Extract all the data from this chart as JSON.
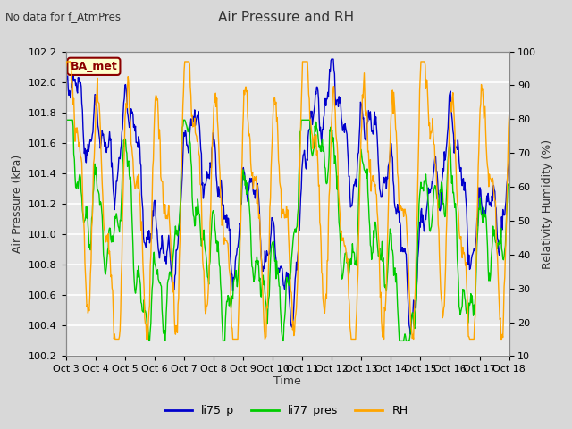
{
  "title": "Air Pressure and RH",
  "subtitle": "No data for f_AtmPres",
  "xlabel": "Time",
  "ylabel_left": "Air Pressure (kPa)",
  "ylabel_right": "Relativity Humidity (%)",
  "xlim_days": [
    0,
    15
  ],
  "ylim_left": [
    100.2,
    102.2
  ],
  "ylim_right": [
    10,
    100
  ],
  "xtick_labels": [
    "Oct 3",
    "Oct 4",
    "Oct 5",
    "Oct 6",
    "Oct 7",
    "Oct 8",
    "Oct 9",
    "Oct 10",
    "Oct 11",
    "Oct 12",
    "Oct 13",
    "Oct 14",
    "Oct 15",
    "Oct 16",
    "Oct 17",
    "Oct 18"
  ],
  "yticks_left": [
    100.2,
    100.4,
    100.6,
    100.8,
    101.0,
    101.2,
    101.4,
    101.6,
    101.8,
    102.0,
    102.2
  ],
  "yticks_right": [
    10,
    20,
    30,
    40,
    50,
    60,
    70,
    80,
    90,
    100
  ],
  "bg_color": "#d8d8d8",
  "plot_bg_color": "#e8e8e8",
  "grid_color": "#ffffff",
  "line_blue": "#0000cc",
  "line_green": "#00cc00",
  "line_orange": "#ffa500",
  "annotation_text": "BA_met",
  "annotation_color": "#8b0000",
  "annotation_bg": "#ffffcc",
  "legend_labels": [
    "li75_p",
    "li77_pres",
    "RH"
  ]
}
